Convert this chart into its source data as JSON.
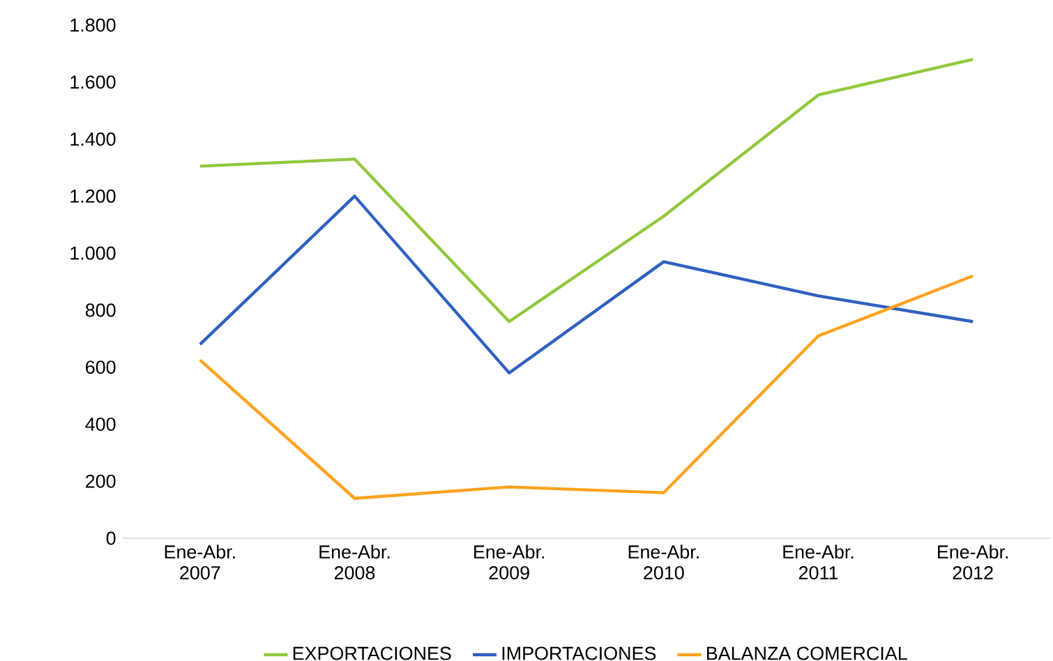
{
  "chart_data": {
    "type": "line",
    "categories": [
      "Ene-Abr. 2007",
      "Ene-Abr. 2008",
      "Ene-Abr. 2009",
      "Ene-Abr. 2010",
      "Ene-Abr. 2011",
      "Ene-Abr. 2012"
    ],
    "series": [
      {
        "name": "EXPORTACIONES",
        "color": "#92c83e",
        "values": [
          1305,
          1330,
          760,
          1130,
          1555,
          1680
        ]
      },
      {
        "name": "IMPORTACIONES",
        "color": "#3060c0",
        "values": [
          680,
          1200,
          580,
          970,
          850,
          760
        ]
      },
      {
        "name": "BALANZA COMERCIAL",
        "color": "#ffa21f",
        "values": [
          625,
          140,
          180,
          160,
          710,
          920
        ]
      }
    ],
    "ylim": [
      0,
      1800
    ],
    "yticks": [
      0,
      200,
      400,
      600,
      800,
      {
        "value": 1000,
        "label": "1.000"
      },
      {
        "value": 1200,
        "label": "1.200"
      },
      {
        "value": 1400,
        "label": "1.400"
      },
      {
        "value": 1600,
        "label": "1.600"
      },
      {
        "value": 1800,
        "label": "1.800"
      }
    ],
    "grid": false,
    "legend": "bottom",
    "marker": "none",
    "line_style": "solid"
  }
}
